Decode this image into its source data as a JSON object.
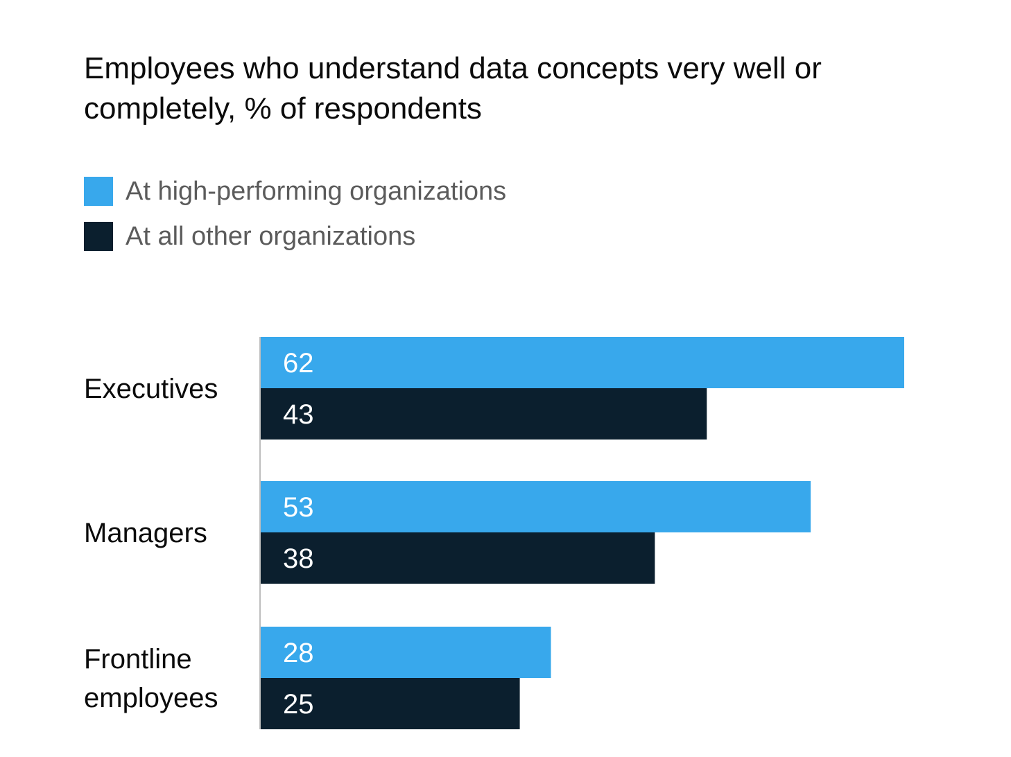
{
  "title": "Employees who understand data concepts very well or completely, % of respondents",
  "legend": [
    {
      "label": "At high-performing organizations",
      "color": "#38a8ec"
    },
    {
      "label": "At all other organizations",
      "color": "#0b1f2e"
    }
  ],
  "chart_data": {
    "type": "bar",
    "orientation": "horizontal",
    "title": "Employees who understand data concepts very well or completely, % of respondents",
    "categories": [
      [
        "Executives"
      ],
      [
        "Managers"
      ],
      [
        "Frontline",
        "employees"
      ]
    ],
    "series": [
      {
        "name": "At high-performing organizations",
        "values": [
          62,
          53,
          28
        ],
        "color": "#38a8ec"
      },
      {
        "name": "At all other organizations",
        "values": [
          43,
          38,
          25
        ],
        "color": "#0b1f2e"
      }
    ],
    "xlim": [
      0,
      62
    ],
    "grid": false,
    "legend_position": "top-left",
    "data_labels": "inside-start",
    "colors": {
      "axis_line": "#bdbdbd",
      "data_label": "#ffffff",
      "category_label": "#0b0b0b"
    }
  }
}
